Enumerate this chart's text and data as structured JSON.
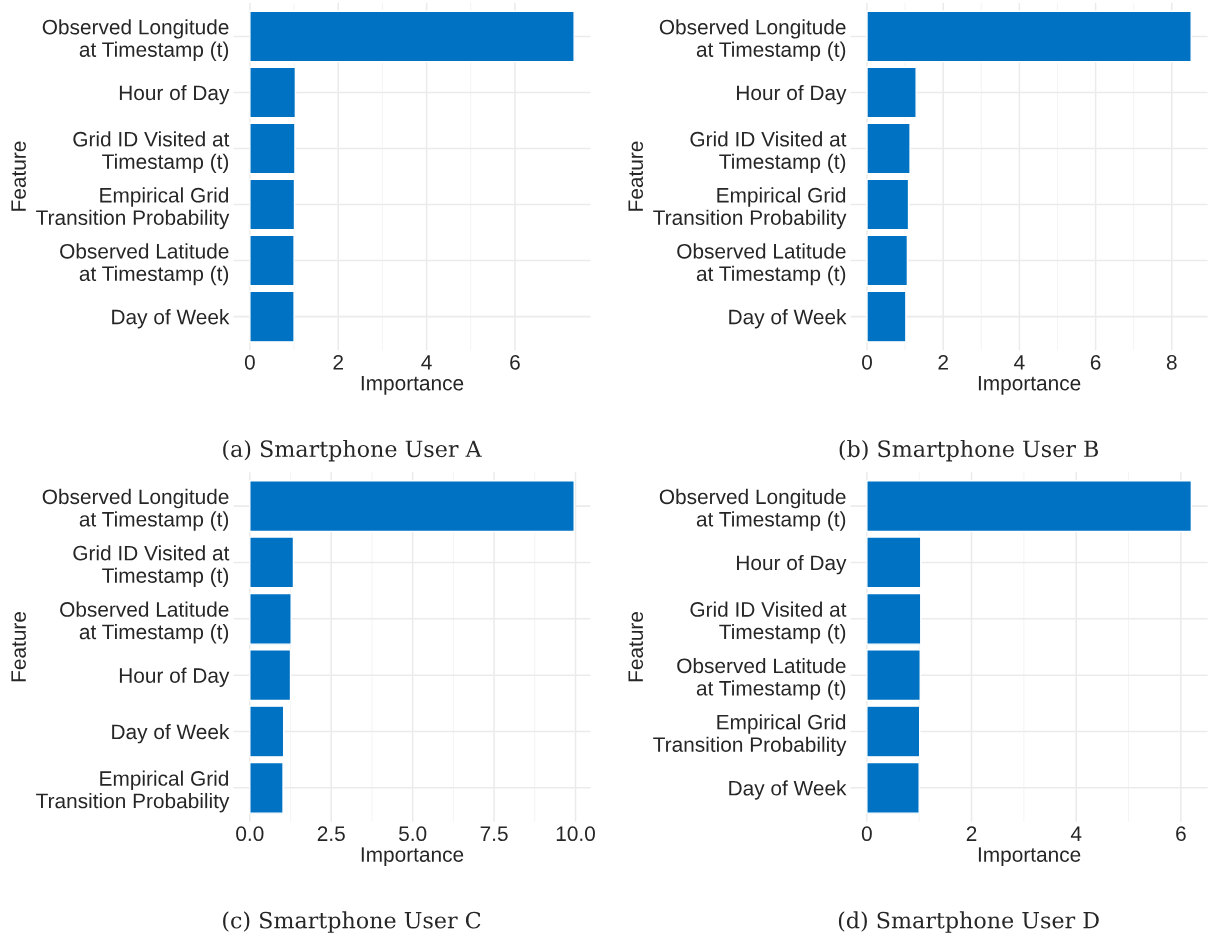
{
  "chart_data": [
    {
      "type": "bar",
      "orientation": "horizontal",
      "title": "(a) Smartphone User A",
      "xlabel": "Importance",
      "ylabel": "Feature",
      "categories": [
        "Observed Longitude\nat Timestamp (t)",
        "Hour of Day",
        "Grid ID Visited at\nTimestamp (t)",
        "Empirical Grid\nTransition Probability",
        "Observed Latitude\nat Timestamp (t)",
        "Day of Week"
      ],
      "values": [
        7.34,
        1.03,
        1.02,
        1.01,
        1.0,
        1.0
      ],
      "color": "#0072c4",
      "xlim": [
        -0.37,
        7.71
      ],
      "xticks": [
        0,
        2,
        4,
        6
      ],
      "grid": true
    },
    {
      "type": "bar",
      "orientation": "horizontal",
      "title": "(b) Smartphone User B",
      "xlabel": "Importance",
      "ylabel": "Feature",
      "categories": [
        "Observed Longitude\nat Timestamp (t)",
        "Hour of Day",
        "Grid ID Visited at\nTimestamp (t)",
        "Empirical Grid\nTransition Probability",
        "Observed Latitude\nat Timestamp (t)",
        "Day of Week"
      ],
      "values": [
        8.51,
        1.29,
        1.13,
        1.09,
        1.06,
        1.02
      ],
      "color": "#0072c4",
      "xlim": [
        -0.43,
        8.94
      ],
      "xticks": [
        0,
        2,
        4,
        6,
        8
      ],
      "grid": true
    },
    {
      "type": "bar",
      "orientation": "horizontal",
      "title": "(c) Smartphone User C",
      "xlabel": "Importance",
      "ylabel": "Feature",
      "categories": [
        "Observed Longitude\nat Timestamp (t)",
        "Grid ID Visited at\nTimestamp (t)",
        "Observed Latitude\nat Timestamp (t)",
        "Hour of Day",
        "Day of Week",
        "Empirical Grid\nTransition Probability"
      ],
      "values": [
        9.96,
        1.34,
        1.27,
        1.25,
        1.04,
        1.02
      ],
      "color": "#0072c4",
      "xlim": [
        -0.5,
        10.46
      ],
      "xticks": [
        {
          "value": 0,
          "label": "0.0"
        },
        2.5,
        {
          "value": 5,
          "label": "5.0"
        },
        7.5,
        {
          "value": 10,
          "label": "10.0"
        }
      ],
      "grid": true
    },
    {
      "type": "bar",
      "orientation": "horizontal",
      "title": "(d) Smartphone User D",
      "xlabel": "Importance",
      "ylabel": "Feature",
      "categories": [
        "Observed Longitude\nat Timestamp (t)",
        "Hour of Day",
        "Grid ID Visited at\nTimestamp (t)",
        "Observed Latitude\nat Timestamp (t)",
        "Empirical Grid\nTransition Probability",
        "Day of Week"
      ],
      "values": [
        6.2,
        1.03,
        1.03,
        1.02,
        1.01,
        1.0
      ],
      "color": "#0072c4",
      "xlim": [
        -0.31,
        6.51
      ],
      "xticks": [
        0,
        2,
        4,
        6
      ],
      "grid": true
    }
  ]
}
